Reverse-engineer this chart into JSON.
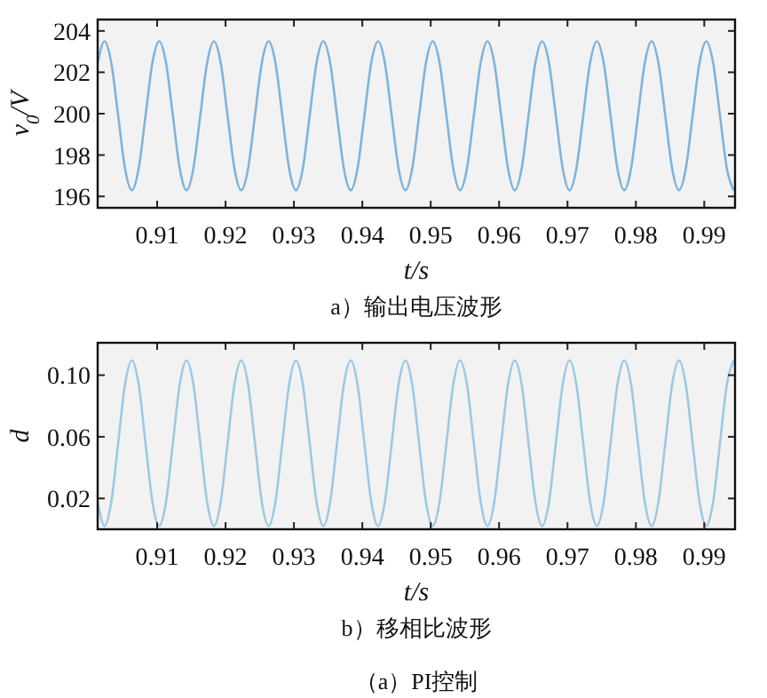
{
  "chart_data": [
    {
      "type": "line",
      "xlabel": "t/s",
      "ylabel": "v$_{0}$/V",
      "annotations": [
        "a）输出电压波形"
      ],
      "color": "#7fb3dc",
      "xlim": [
        0.9013,
        0.9945
      ],
      "ylim": [
        195.45,
        204.55
      ],
      "xticks": [
        0.91,
        0.92,
        0.93,
        0.94,
        0.95,
        0.96,
        0.97,
        0.98,
        0.99
      ],
      "yticks": [
        196,
        198,
        200,
        202,
        204
      ],
      "x": [
        0.9013,
        0.9023,
        0.9033,
        0.9043,
        0.9053,
        0.9063,
        0.9073,
        0.9083,
        0.9093,
        0.9103,
        0.9113,
        0.9123,
        0.9133,
        0.9143,
        0.9153,
        0.9163,
        0.9173,
        0.9183,
        0.9193,
        0.9203,
        0.9213,
        0.9223,
        0.9233,
        0.9243,
        0.9253,
        0.9263,
        0.9273,
        0.9283,
        0.9293,
        0.9303,
        0.9313,
        0.9323,
        0.9333,
        0.9343,
        0.9353,
        0.9363,
        0.9373,
        0.9383,
        0.9393,
        0.9403,
        0.9413,
        0.9423,
        0.9433,
        0.9443,
        0.9453,
        0.9463,
        0.9473,
        0.9483,
        0.9493,
        0.9503,
        0.9513,
        0.9523,
        0.9533,
        0.9543,
        0.9553,
        0.9563,
        0.9573,
        0.9583,
        0.9593,
        0.9603,
        0.9613,
        0.9623,
        0.9633,
        0.9643,
        0.9653,
        0.9663,
        0.9673,
        0.9683,
        0.9693,
        0.9703,
        0.9713,
        0.9723,
        0.9733,
        0.9743,
        0.9753,
        0.9763,
        0.9773,
        0.9783,
        0.9793,
        0.9803,
        0.9813,
        0.9823,
        0.9833,
        0.9843,
        0.9853,
        0.9863,
        0.9873,
        0.9883,
        0.9893,
        0.9903,
        0.9913,
        0.9923,
        0.9933,
        0.9943
      ],
      "values": [
        202.45,
        203.5,
        202.45,
        199.9,
        197.35,
        196.3,
        197.35,
        199.9,
        202.45,
        203.5,
        202.45,
        199.9,
        197.35,
        196.3,
        197.35,
        199.9,
        202.45,
        203.5,
        202.45,
        199.9,
        197.35,
        196.3,
        197.35,
        199.9,
        202.45,
        203.5,
        202.45,
        199.9,
        197.35,
        196.3,
        197.35,
        199.9,
        202.45,
        203.5,
        202.45,
        199.9,
        197.35,
        196.3,
        197.35,
        199.9,
        202.45,
        203.5,
        202.45,
        199.9,
        197.35,
        196.3,
        197.35,
        199.9,
        202.45,
        203.5,
        202.45,
        199.9,
        197.35,
        196.3,
        197.35,
        199.9,
        202.45,
        203.5,
        202.45,
        199.9,
        197.35,
        196.3,
        197.35,
        199.9,
        202.45,
        203.5,
        202.45,
        199.9,
        197.35,
        196.3,
        197.35,
        199.9,
        202.45,
        203.5,
        202.45,
        199.9,
        197.35,
        196.3,
        197.35,
        199.9,
        202.45,
        203.5,
        202.45,
        199.9,
        197.35,
        196.3,
        197.35,
        199.9,
        202.45,
        203.5,
        202.45,
        199.9,
        197.35,
        196.3
      ]
    },
    {
      "type": "line",
      "xlabel": "t/s",
      "ylabel": "d",
      "annotations": [
        "b）移相比波形",
        "（a）PI控制"
      ],
      "color": "#9cc8e6",
      "xlim": [
        0.9013,
        0.9945
      ],
      "ylim": [
        0,
        0.121
      ],
      "xticks": [
        0.91,
        0.92,
        0.93,
        0.94,
        0.95,
        0.96,
        0.97,
        0.98,
        0.99
      ],
      "yticks": [
        0.02,
        0.06,
        {
          "value": 0.1,
          "label": "0.10"
        }
      ],
      "x": [
        0.9013,
        0.9023,
        0.9033,
        0.9043,
        0.9053,
        0.9063,
        0.9073,
        0.9083,
        0.9093,
        0.9103,
        0.9113,
        0.9123,
        0.9133,
        0.9143,
        0.9153,
        0.9163,
        0.9173,
        0.9183,
        0.9193,
        0.9203,
        0.9213,
        0.9223,
        0.9233,
        0.9243,
        0.9253,
        0.9263,
        0.9273,
        0.9283,
        0.9293,
        0.9303,
        0.9313,
        0.9323,
        0.9333,
        0.9343,
        0.9353,
        0.9363,
        0.9373,
        0.9383,
        0.9393,
        0.9403,
        0.9413,
        0.9423,
        0.9433,
        0.9443,
        0.9453,
        0.9463,
        0.9473,
        0.9483,
        0.9493,
        0.9503,
        0.9513,
        0.9523,
        0.9533,
        0.9543,
        0.9553,
        0.9563,
        0.9573,
        0.9583,
        0.9593,
        0.9603,
        0.9613,
        0.9623,
        0.9633,
        0.9643,
        0.9653,
        0.9663,
        0.9673,
        0.9683,
        0.9693,
        0.9703,
        0.9713,
        0.9723,
        0.9733,
        0.9743,
        0.9753,
        0.9763,
        0.9773,
        0.9783,
        0.9793,
        0.9803,
        0.9813,
        0.9823,
        0.9833,
        0.9843,
        0.9853,
        0.9863,
        0.9873,
        0.9883,
        0.9893,
        0.9903,
        0.9913,
        0.9923,
        0.9933,
        0.9943
      ],
      "values": [
        0.0179,
        0.0022,
        0.0179,
        0.0559,
        0.0939,
        0.1096,
        0.0939,
        0.0559,
        0.0179,
        0.0022,
        0.0179,
        0.0559,
        0.0939,
        0.1096,
        0.0939,
        0.0559,
        0.0179,
        0.0022,
        0.0179,
        0.0559,
        0.0939,
        0.1096,
        0.0939,
        0.0559,
        0.0179,
        0.0022,
        0.0179,
        0.0559,
        0.0939,
        0.1096,
        0.0939,
        0.0559,
        0.0179,
        0.0022,
        0.0179,
        0.0559,
        0.0939,
        0.1096,
        0.0939,
        0.0559,
        0.0179,
        0.0022,
        0.0179,
        0.0559,
        0.0939,
        0.1096,
        0.0939,
        0.0559,
        0.0179,
        0.0022,
        0.0179,
        0.0559,
        0.0939,
        0.1096,
        0.0939,
        0.0559,
        0.0179,
        0.0022,
        0.0179,
        0.0559,
        0.0939,
        0.1096,
        0.0939,
        0.0559,
        0.0179,
        0.0022,
        0.0179,
        0.0559,
        0.0939,
        0.1096,
        0.0939,
        0.0559,
        0.0179,
        0.0022,
        0.0179,
        0.0559,
        0.0939,
        0.1096,
        0.0939,
        0.0559,
        0.0179,
        0.0022,
        0.0179,
        0.0559,
        0.0939,
        0.1096,
        0.0939,
        0.0559,
        0.0179,
        0.0022,
        0.0179,
        0.0559,
        0.0939,
        0.1096
      ]
    }
  ]
}
